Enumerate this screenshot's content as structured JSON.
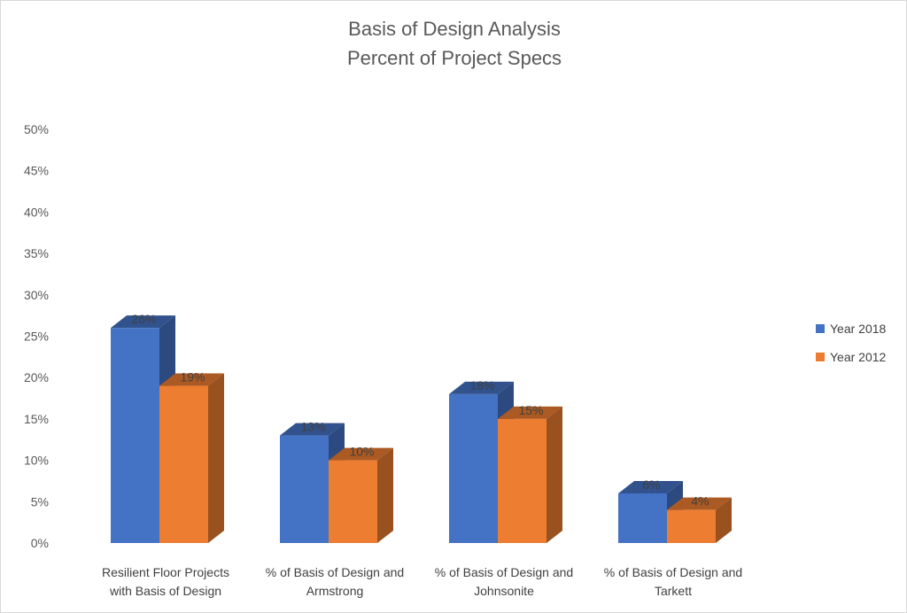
{
  "chart_data": {
    "type": "bar",
    "title": "Basis of Design Analysis",
    "subtitle": "Percent of Project Specs",
    "xlabel": "",
    "ylabel": "",
    "ylim": [
      0,
      50
    ],
    "y_ticks": [
      "0%",
      "5%",
      "10%",
      "15%",
      "20%",
      "25%",
      "30%",
      "35%",
      "40%",
      "45%",
      "50%"
    ],
    "grid": false,
    "three_d": true,
    "legend_position": "right",
    "categories": [
      [
        "Resilient Floor Projects",
        "with Basis of Design"
      ],
      [
        "% of Basis of Design and",
        "Armstrong"
      ],
      [
        "% of Basis of Design and",
        "Johnsonite"
      ],
      [
        "% of Basis of Design and",
        "Tarkett"
      ]
    ],
    "series": [
      {
        "name": "Year 2018",
        "color": "#4472C4",
        "values": [
          26,
          13,
          18,
          6
        ],
        "labels": [
          "26%",
          "13%",
          "18%",
          "6%"
        ]
      },
      {
        "name": "Year 2012",
        "color": "#ED7D31",
        "values": [
          19,
          10,
          15,
          4
        ],
        "labels": [
          "19%",
          "10%",
          "15%",
          "4%"
        ]
      }
    ]
  }
}
